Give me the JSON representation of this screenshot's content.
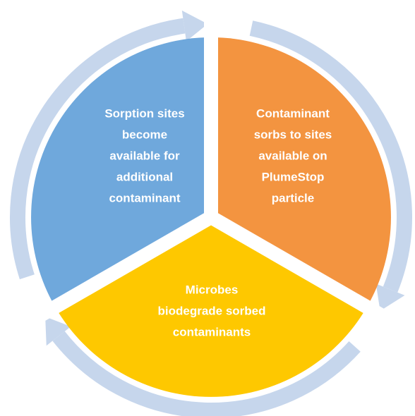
{
  "segments": [
    {
      "lines": [
        "Sorption sites",
        "become",
        "available for",
        "additional",
        "contaminant"
      ]
    },
    {
      "lines": [
        "Contaminant",
        "sorbs to sites",
        "available on",
        "PlumeStop",
        "particle"
      ]
    },
    {
      "lines": [
        "Microbes",
        "biodegrade sorbed",
        "contaminants"
      ]
    }
  ]
}
